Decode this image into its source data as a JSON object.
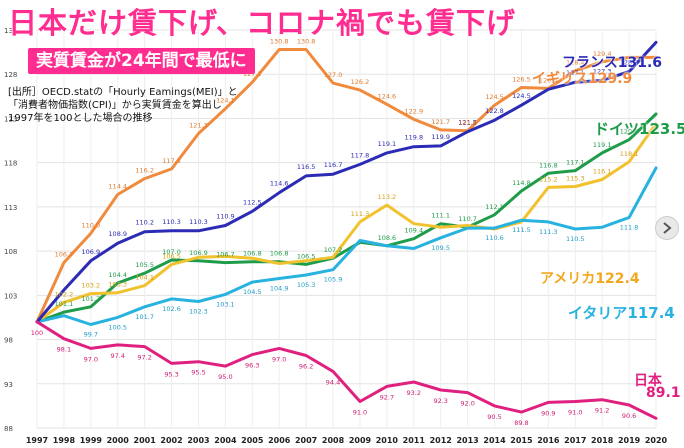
{
  "header": {
    "title": "日本だけ賃下げ、コロナ禍でも賃下げ",
    "subtitle": "実質賃金が24年間で最低に",
    "source_lines": [
      "[出所］OECD.statの「Hourly Eamings(MEI)」と",
      "「消費者物価指数(CPI)」から実質賃金を算出し",
      "1997年を100とした場合の推移"
    ]
  },
  "labels": {
    "france": "フランス",
    "france_value": "131.6",
    "uk": "イギリス",
    "uk_value": "129.9",
    "germany": "ドイツ",
    "germany_value": "123.5",
    "usa": "アメリカ",
    "usa_value": "122.4",
    "italy": "イタリア",
    "italy_value": "117.4",
    "japan": "日本",
    "japan_value": "89.1"
  },
  "colors": {
    "title": "#ff2d8f",
    "france": "#2b2bb5",
    "uk": "#f08a3c",
    "germany": "#1f9c4a",
    "usa": "#f2c12e",
    "italy": "#28b2e0",
    "japan": "#e0207f"
  },
  "chart_data": {
    "type": "line",
    "x": [
      "1997",
      "1998",
      "1999",
      "2000",
      "2001",
      "2002",
      "2003",
      "2004",
      "2005",
      "2006",
      "2007",
      "2008",
      "2009",
      "2010",
      "2011",
      "2012",
      "2013",
      "2014",
      "2015",
      "2016",
      "2017",
      "2018",
      "2019",
      "2020"
    ],
    "y_ticks": [
      88,
      93,
      98,
      103,
      108,
      113,
      118,
      123,
      128,
      133
    ],
    "ylim": [
      88,
      133
    ],
    "series": [
      {
        "name": "フランス",
        "color_key": "france",
        "values": [
          100,
          103.6,
          106.9,
          108.9,
          110.2,
          110.3,
          110.3,
          110.9,
          112.5,
          114.6,
          116.5,
          116.7,
          117.8,
          119.1,
          119.8,
          119.9,
          121.5,
          122.8,
          124.5,
          126.3,
          127.1,
          127.3,
          128.3,
          131.6
        ],
        "labels": [
          "",
          "",
          "106.9",
          "108.9",
          "110.2",
          "110.3",
          "110.3",
          "110.9",
          "112.5",
          "114.6",
          "116.5",
          "116.7",
          "117.8",
          "119.1",
          "119.8",
          "119.9",
          "121.5",
          "122.8",
          "124.5",
          "",
          "127.1",
          "127.3",
          "128.3",
          ""
        ]
      },
      {
        "name": "イギリス",
        "color_key": "uk",
        "values": [
          100,
          106.7,
          110.0,
          114.4,
          116.2,
          117.3,
          121.3,
          124.1,
          127.1,
          130.8,
          130.8,
          127.0,
          126.2,
          124.6,
          122.9,
          121.7,
          121.6,
          124.5,
          126.5,
          126.4,
          128.4,
          129.4,
          129.9,
          129.9
        ],
        "labels": [
          "",
          "106.7",
          "110.0",
          "114.4",
          "116.2",
          "117.3",
          "121.3",
          "124.1",
          "127.1",
          "130.8",
          "130.8",
          "127.0",
          "126.2",
          "124.6",
          "122.9",
          "121.7",
          "121.6",
          "124.5",
          "126.5",
          "126.4",
          "128.4",
          "129.4",
          "",
          ""
        ]
      },
      {
        "name": "ドイツ",
        "color_key": "germany",
        "values": [
          100,
          101.1,
          101.7,
          104.4,
          105.5,
          107.0,
          106.9,
          106.7,
          106.8,
          106.8,
          106.5,
          107.2,
          109.0,
          108.6,
          109.4,
          111.1,
          110.7,
          112.1,
          114.8,
          116.8,
          117.1,
          119.1,
          120.6,
          123.5
        ],
        "labels": [
          "",
          "101.1",
          "101.7",
          "104.4",
          "105.5",
          "107.0",
          "106.9",
          "106.7",
          "106.8",
          "106.8",
          "106.5",
          "107.2",
          "",
          "108.6",
          "109.4",
          "111.1",
          "110.7",
          "112.1",
          "114.8",
          "116.8",
          "117.1",
          "119.1",
          "120.6",
          ""
        ]
      },
      {
        "name": "アメリカ",
        "color_key": "usa",
        "values": [
          100,
          102.2,
          103.2,
          103.3,
          104.1,
          106.5,
          107.3,
          107.4,
          107.2,
          106.6,
          106.9,
          107.3,
          111.3,
          113.2,
          111.1,
          110.7,
          110.9,
          110.5,
          111.3,
          115.2,
          115.3,
          116.1,
          118.1,
          122.4
        ],
        "labels": [
          "",
          "102.2",
          "103.2",
          "103.3",
          "104.1",
          "106.5",
          "",
          "",
          "",
          "",
          "",
          "",
          "111.3",
          "113.2",
          "",
          "",
          "",
          "",
          "",
          "115.2",
          "115.3",
          "116.1",
          "118.1",
          ""
        ]
      },
      {
        "name": "イタリア",
        "color_key": "italy",
        "values": [
          100,
          100.7,
          99.7,
          100.5,
          101.7,
          102.6,
          102.3,
          103.1,
          104.5,
          104.9,
          105.3,
          105.9,
          109.2,
          108.6,
          108.3,
          109.5,
          110.6,
          110.6,
          111.5,
          111.3,
          110.5,
          110.7,
          111.8,
          117.4
        ],
        "labels": [
          "",
          "",
          "99.7",
          "100.5",
          "101.7",
          "102.6",
          "102.3",
          "103.1",
          "104.5",
          "104.9",
          "105.3",
          "105.9",
          "",
          "",
          "",
          "109.5",
          "",
          "110.6",
          "111.5",
          "111.3",
          "110.5",
          "",
          "111.8",
          ""
        ]
      },
      {
        "name": "日本",
        "color_key": "japan",
        "values": [
          100,
          98.1,
          97.0,
          97.4,
          97.2,
          95.3,
          95.5,
          95.0,
          96.3,
          97.0,
          96.2,
          94.4,
          91.0,
          92.7,
          93.2,
          92.3,
          92.0,
          90.5,
          89.8,
          90.9,
          91.0,
          91.2,
          90.6,
          89.1
        ],
        "labels": [
          "100",
          "98.1",
          "97.0",
          "97.4",
          "97.2",
          "95.3",
          "95.5",
          "95.0",
          "96.3",
          "97.0",
          "96.2",
          "94.4",
          "91.0",
          "92.7",
          "93.2",
          "92.3",
          "92.0",
          "90.5",
          "89.8",
          "90.9",
          "91.0",
          "91.2",
          "90.6",
          ""
        ]
      }
    ],
    "grid": true,
    "legend": "inline-labels"
  }
}
